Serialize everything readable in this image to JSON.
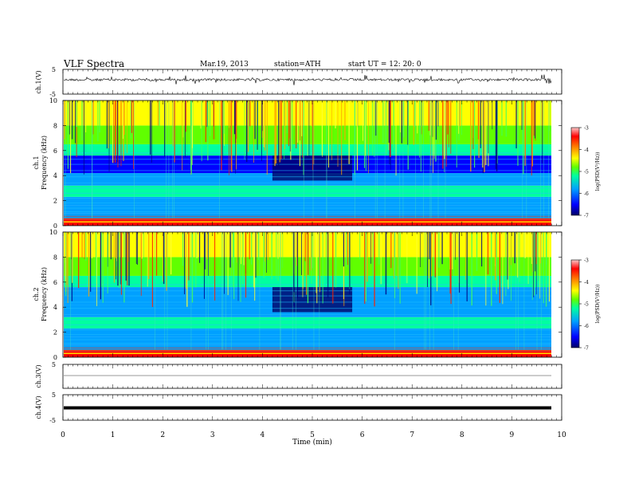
{
  "header": {
    "title": "VLF  Spectra",
    "date": "Mar.19, 2013",
    "station": "station=ATH",
    "start": "start  UT  =    12: 20: 0"
  },
  "chart_data": [
    {
      "type": "line",
      "panel": "ch1-waveform",
      "ylabel": "ch.1(V)",
      "ylim": [
        -5,
        5
      ],
      "y_ticks": [
        "5",
        "-5"
      ],
      "xlim": [
        0,
        10
      ]
    },
    {
      "type": "heatmap",
      "panel": "ch1-spectrogram",
      "ylabel": "ch.1\nFrequency  (kHz)",
      "ylim": [
        0,
        10
      ],
      "y_ticks": [
        "0",
        "2",
        "4",
        "6",
        "8",
        "10"
      ],
      "xlim": [
        0,
        10
      ],
      "data_end_min": 9.8,
      "colorbar": {
        "label": "log(PSD(V²/Hz))",
        "range": [
          -7,
          -3
        ],
        "ticks": [
          "-3",
          "-4",
          "-5",
          "-6",
          "-7"
        ]
      }
    },
    {
      "type": "heatmap",
      "panel": "ch2-spectrogram",
      "ylabel": "ch.2\nFrequency  (kHz)",
      "ylim": [
        0,
        10
      ],
      "y_ticks": [
        "0",
        "2",
        "4",
        "6",
        "8",
        "10"
      ],
      "xlim": [
        0,
        10
      ],
      "data_end_min": 9.8,
      "colorbar": {
        "label": "log(PSD(V²/Hz))",
        "range": [
          -7,
          -3
        ],
        "ticks": [
          "-3",
          "-4",
          "-5",
          "-6",
          "-7"
        ]
      }
    },
    {
      "type": "line",
      "panel": "ch3-waveform",
      "ylabel": "ch.3(V)",
      "ylim": [
        -5,
        5
      ],
      "y_ticks": [
        "5",
        "-5"
      ],
      "xlim": [
        0,
        10
      ]
    },
    {
      "type": "line",
      "panel": "ch4-waveform",
      "ylabel": "ch.4(V)",
      "ylim": [
        -5,
        5
      ],
      "y_ticks": [
        "5",
        "-5"
      ],
      "xlim": [
        0,
        10
      ]
    }
  ],
  "x_axis": {
    "label": "Time  (min)",
    "ticks": [
      "0",
      "1",
      "2",
      "3",
      "4",
      "5",
      "6",
      "7",
      "8",
      "9",
      "10"
    ]
  },
  "colors": {
    "colormap": [
      "#000066",
      "#0000ff",
      "#00a0ff",
      "#00ffa0",
      "#60ff00",
      "#ffff00",
      "#ff8000",
      "#ff0000",
      "#ffc8c8"
    ]
  }
}
